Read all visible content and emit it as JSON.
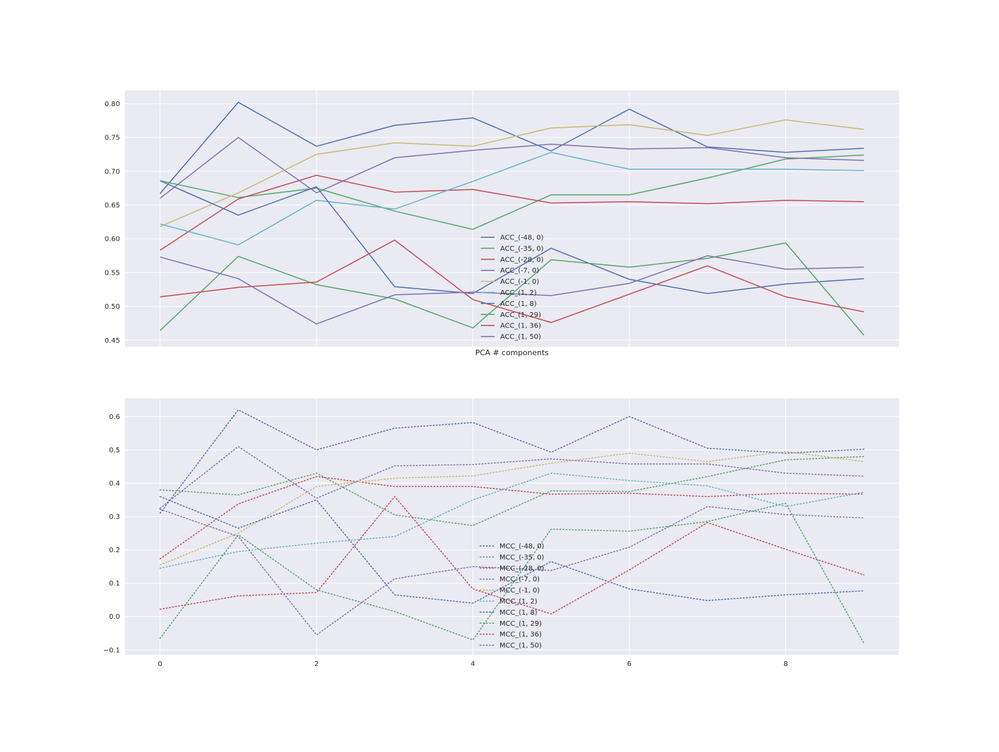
{
  "chart_data": [
    {
      "type": "line",
      "xlabel": "PCA # components",
      "ylabel": "",
      "xlim": [
        -0.45,
        9.45
      ],
      "ylim": [
        0.44,
        0.82
      ],
      "yticks": [
        "0.45",
        "0.50",
        "0.55",
        "0.60",
        "0.65",
        "0.70",
        "0.75",
        "0.80"
      ],
      "xticks": [
        "0",
        "2",
        "4",
        "6",
        "8"
      ],
      "show_xtick_labels": false,
      "grid": true,
      "legend_position": "center",
      "line_style": "solid",
      "x": [
        0,
        1,
        2,
        3,
        4,
        5,
        6,
        7,
        8,
        9
      ],
      "series": [
        {
          "name": "ACC_(-48, 0)",
          "color": "#4c72b0",
          "values": [
            0.667,
            0.802,
            0.737,
            0.768,
            0.779,
            0.73,
            0.792,
            0.736,
            0.728,
            0.734
          ]
        },
        {
          "name": "ACC_(-35, 0)",
          "color": "#55a868",
          "values": [
            0.686,
            0.661,
            0.675,
            0.641,
            0.614,
            0.665,
            0.665,
            0.69,
            0.718,
            0.724
          ]
        },
        {
          "name": "ACC_(-28, 0)",
          "color": "#c44e52",
          "values": [
            0.583,
            0.659,
            0.694,
            0.669,
            0.673,
            0.653,
            0.655,
            0.652,
            0.657,
            0.655
          ]
        },
        {
          "name": "ACC_(-7, 0)",
          "color": "#8172b2",
          "values": [
            0.66,
            0.75,
            0.668,
            0.72,
            0.731,
            0.74,
            0.733,
            0.735,
            0.72,
            0.716
          ]
        },
        {
          "name": "ACC_(-1, 0)",
          "color": "#ccb974",
          "values": [
            0.618,
            0.668,
            0.725,
            0.742,
            0.737,
            0.764,
            0.769,
            0.753,
            0.776,
            0.762
          ]
        },
        {
          "name": "ACC_(1, 2)",
          "color": "#64b5cd",
          "values": [
            0.622,
            0.591,
            0.657,
            0.644,
            0.685,
            0.728,
            0.703,
            0.703,
            0.703,
            0.701
          ]
        },
        {
          "name": "ACC_(1, 8)",
          "color": "#4c72b0",
          "values": [
            0.686,
            0.635,
            0.677,
            0.529,
            0.519,
            0.586,
            0.54,
            0.519,
            0.533,
            0.541
          ]
        },
        {
          "name": "ACC_(1, 29)",
          "color": "#55a868",
          "values": [
            0.464,
            0.574,
            0.532,
            0.511,
            0.468,
            0.569,
            0.558,
            0.571,
            0.594,
            0.457
          ]
        },
        {
          "name": "ACC_(1, 36)",
          "color": "#c44e52",
          "values": [
            0.514,
            0.528,
            0.536,
            0.598,
            0.51,
            0.476,
            0.518,
            0.56,
            0.514,
            0.492
          ]
        },
        {
          "name": "ACC_(1, 50)",
          "color": "#8172b2",
          "values": [
            0.573,
            0.541,
            0.474,
            0.517,
            0.521,
            0.516,
            0.534,
            0.575,
            0.555,
            0.558
          ]
        }
      ]
    },
    {
      "type": "line",
      "xlabel": "",
      "ylabel": "",
      "xlim": [
        -0.45,
        9.45
      ],
      "ylim": [
        -0.115,
        0.655
      ],
      "yticks": [
        "−0.1",
        "0.0",
        "0.1",
        "0.2",
        "0.3",
        "0.4",
        "0.5",
        "0.6"
      ],
      "xticks": [
        "0",
        "2",
        "4",
        "6",
        "8"
      ],
      "show_xtick_labels": true,
      "grid": true,
      "legend_position": "lower center",
      "line_style": "dotted",
      "x": [
        0,
        1,
        2,
        3,
        4,
        5,
        6,
        7,
        8,
        9
      ],
      "series": [
        {
          "name": "MCC_(-48, 0)",
          "color": "#4c72b0",
          "values": [
            0.31,
            0.62,
            0.5,
            0.565,
            0.582,
            0.493,
            0.6,
            0.505,
            0.49,
            0.502
          ]
        },
        {
          "name": "MCC_(-35, 0)",
          "color": "#55a868",
          "values": [
            0.38,
            0.365,
            0.43,
            0.305,
            0.273,
            0.377,
            0.375,
            0.42,
            0.47,
            0.48
          ]
        },
        {
          "name": "MCC_(-28, 0)",
          "color": "#c44e52",
          "values": [
            0.173,
            0.338,
            0.42,
            0.39,
            0.39,
            0.367,
            0.37,
            0.36,
            0.37,
            0.367
          ]
        },
        {
          "name": "MCC_(-7, 0)",
          "color": "#8172b2",
          "values": [
            0.325,
            0.51,
            0.355,
            0.452,
            0.456,
            0.473,
            0.458,
            0.458,
            0.43,
            0.421
          ]
        },
        {
          "name": "MCC_(-1, 0)",
          "color": "#ccb974",
          "values": [
            0.155,
            0.25,
            0.39,
            0.415,
            0.422,
            0.46,
            0.49,
            0.465,
            0.495,
            0.465
          ]
        },
        {
          "name": "MCC_(1, 2)",
          "color": "#64b5cd",
          "values": [
            0.145,
            0.195,
            0.22,
            0.24,
            0.35,
            0.43,
            0.408,
            0.392,
            0.33,
            0.373
          ]
        },
        {
          "name": "MCC_(1, 8)",
          "color": "#4c72b0",
          "values": [
            0.36,
            0.265,
            0.35,
            0.065,
            0.04,
            0.165,
            0.083,
            0.048,
            0.065,
            0.077
          ]
        },
        {
          "name": "MCC_(1, 29)",
          "color": "#55a868",
          "values": [
            -0.065,
            0.245,
            0.08,
            0.015,
            -0.07,
            0.262,
            0.256,
            0.285,
            0.34,
            -0.08
          ]
        },
        {
          "name": "MCC_(1, 36)",
          "color": "#c44e52",
          "values": [
            0.022,
            0.062,
            0.072,
            0.36,
            0.083,
            0.008,
            0.14,
            0.282,
            0.202,
            0.125
          ]
        },
        {
          "name": "MCC_(1, 50)",
          "color": "#8172b2",
          "values": [
            0.322,
            0.24,
            -0.055,
            0.113,
            0.15,
            0.138,
            0.208,
            0.33,
            0.306,
            0.296
          ]
        }
      ]
    }
  ]
}
